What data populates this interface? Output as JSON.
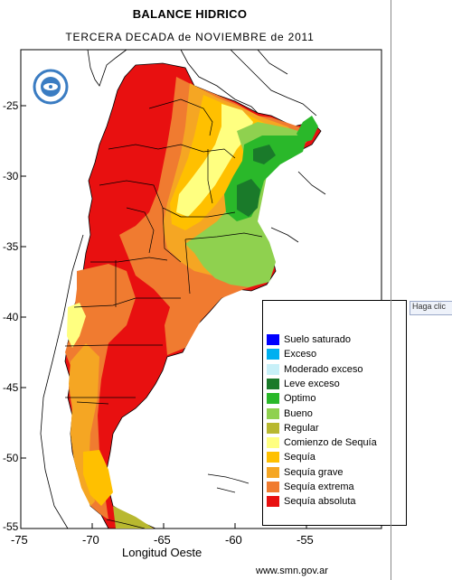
{
  "title": "BALANCE HIDRICO",
  "subtitle": "TERCERA DECADA de NOVIEMBRE de 2011",
  "x_axis_label": "Longitud Oeste",
  "source": "www.smn.gov.ar",
  "tooltip_fragment": "Haga clic",
  "y_ticks": [
    "-25",
    "-30",
    "-35",
    "-40",
    "-45",
    "-50",
    "-55"
  ],
  "x_ticks": [
    "-75",
    "-70",
    "-65",
    "-60",
    "-55"
  ],
  "legend": [
    {
      "label": "Suelo saturado",
      "color": "#0000ff"
    },
    {
      "label": "Exceso",
      "color": "#00b0f0"
    },
    {
      "label": "Moderado exceso",
      "color": "#c8f0f8"
    },
    {
      "label": "Leve exceso",
      "color": "#1a7a2a"
    },
    {
      "label": "Optimo",
      "color": "#2ab82a"
    },
    {
      "label": "Bueno",
      "color": "#8fd14f"
    },
    {
      "label": "Regular",
      "color": "#b8b830"
    },
    {
      "label": "Comienzo de Sequía",
      "color": "#ffff80"
    },
    {
      "label": "Sequía",
      "color": "#ffc000"
    },
    {
      "label": "Sequía grave",
      "color": "#f5a623"
    },
    {
      "label": "Sequía extrema",
      "color": "#f07b30"
    },
    {
      "label": "Sequía absoluta",
      "color": "#e81010"
    }
  ],
  "colors": {
    "frame": "#000000",
    "background": "#ffffff"
  }
}
